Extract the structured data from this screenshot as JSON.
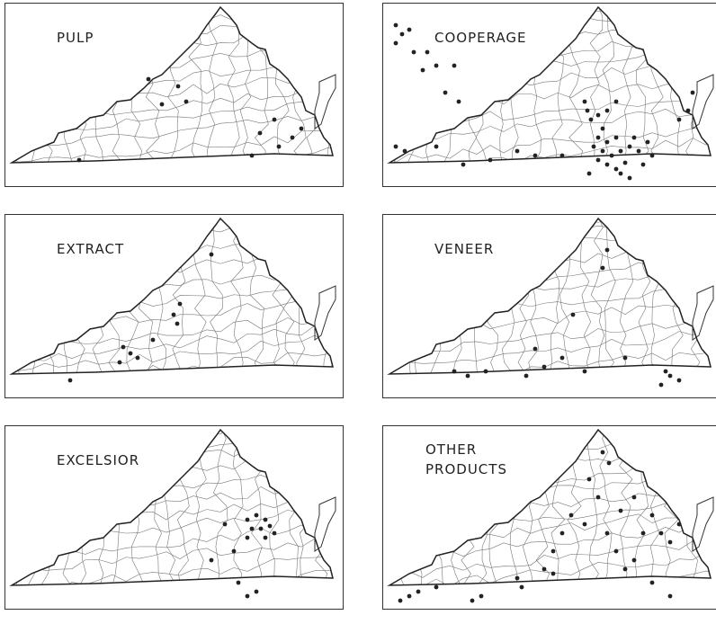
{
  "panels": [
    {
      "title_lines": [
        "PULP"
      ]
    },
    {
      "title_lines": [
        "COOPERAGE"
      ]
    },
    {
      "title_lines": [
        "EXTRACT"
      ]
    },
    {
      "title_lines": [
        "VENEER"
      ]
    },
    {
      "title_lines": [
        "EXCELSIOR"
      ]
    },
    {
      "title_lines": [
        "OTHER",
        "PRODUCTS"
      ]
    }
  ]
}
